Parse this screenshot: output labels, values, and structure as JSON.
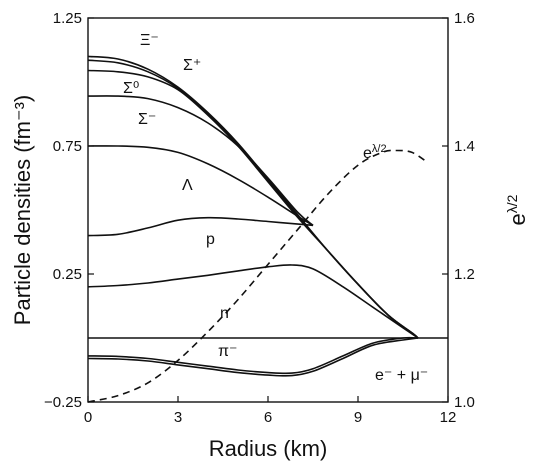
{
  "chart_data": {
    "type": "line",
    "title": "",
    "xlabel": "Radius (km)",
    "ylabel": "Particle densities (fm⁻³)",
    "y2label": "e^{λ/2}",
    "xlim": [
      0,
      12
    ],
    "ylim": [
      -0.25,
      1.25
    ],
    "y2lim": [
      1.0,
      1.6
    ],
    "x_ticks": [
      "0",
      "3",
      "6",
      "9",
      "12"
    ],
    "y_ticks": [
      "−0.25",
      "0.25",
      "0.75",
      "1.25"
    ],
    "y2_ticks": [
      "1.0",
      "1.2",
      "1.4",
      "1.6"
    ],
    "grid": false,
    "series": [
      {
        "name": "Ξ⁻",
        "axis": "left",
        "style": "solid",
        "x": [
          0,
          1,
          2,
          3,
          4,
          5,
          6,
          7,
          8,
          9,
          10,
          10.8,
          11
        ],
        "y": [
          1.1,
          1.09,
          1.05,
          0.98,
          0.88,
          0.76,
          0.62,
          0.48,
          0.34,
          0.21,
          0.09,
          0.02,
          0.0
        ]
      },
      {
        "name": "Σ⁺",
        "axis": "left",
        "style": "solid",
        "x": [
          0,
          1,
          2,
          3,
          4,
          5,
          6,
          7,
          8,
          9,
          10,
          10.8,
          11
        ],
        "y": [
          1.085,
          1.075,
          1.04,
          0.975,
          0.875,
          0.755,
          0.615,
          0.475,
          0.34,
          0.21,
          0.09,
          0.02,
          0.0
        ]
      },
      {
        "name": "Σ⁰",
        "axis": "left",
        "style": "solid",
        "x": [
          0,
          1,
          2,
          3,
          4,
          5,
          6,
          7,
          8,
          9,
          10,
          10.8,
          11
        ],
        "y": [
          1.045,
          1.04,
          1.02,
          0.97,
          0.87,
          0.75,
          0.61,
          0.47,
          0.34,
          0.21,
          0.09,
          0.02,
          0.0
        ]
      },
      {
        "name": "Σ⁻",
        "axis": "left",
        "style": "solid",
        "x": [
          0,
          1,
          2,
          3,
          4,
          5,
          6,
          7,
          7.5
        ],
        "y": [
          0.945,
          0.945,
          0.935,
          0.9,
          0.84,
          0.75,
          0.625,
          0.49,
          0.44
        ]
      },
      {
        "name": "Λ",
        "axis": "left",
        "style": "solid",
        "x": [
          0,
          1,
          2,
          3,
          4,
          5,
          6,
          7,
          7.5
        ],
        "y": [
          0.75,
          0.75,
          0.745,
          0.725,
          0.68,
          0.62,
          0.55,
          0.475,
          0.44
        ]
      },
      {
        "name": "p",
        "axis": "left",
        "style": "solid",
        "x": [
          0,
          1,
          2,
          3,
          4,
          5,
          6,
          7,
          7.5
        ],
        "y": [
          0.4,
          0.405,
          0.43,
          0.46,
          0.47,
          0.465,
          0.455,
          0.445,
          0.44
        ]
      },
      {
        "name": "n",
        "axis": "left",
        "style": "solid",
        "x": [
          0,
          1,
          2,
          3,
          4,
          5,
          6,
          6.8,
          7.5,
          8.5,
          9.5,
          10.5,
          11
        ],
        "y": [
          0.2,
          0.205,
          0.215,
          0.23,
          0.245,
          0.262,
          0.278,
          0.285,
          0.27,
          0.2,
          0.12,
          0.04,
          0.0
        ]
      },
      {
        "name": "π⁻",
        "axis": "left",
        "style": "solid",
        "x": [
          0,
          1,
          2,
          3,
          4,
          5,
          6,
          6.8,
          7.5,
          8.5,
          9.5,
          10.5,
          11
        ],
        "y": [
          -0.07,
          -0.072,
          -0.08,
          -0.095,
          -0.11,
          -0.125,
          -0.135,
          -0.137,
          -0.12,
          -0.07,
          -0.02,
          0.0,
          0.0
        ]
      },
      {
        "name": "e⁻ + μ⁻",
        "axis": "left",
        "style": "solid",
        "x": [
          0,
          1,
          2,
          3,
          4,
          5,
          6,
          6.8,
          7.5,
          8.5,
          9.5,
          10.5,
          11
        ],
        "y": [
          -0.08,
          -0.082,
          -0.09,
          -0.105,
          -0.12,
          -0.135,
          -0.145,
          -0.147,
          -0.13,
          -0.08,
          -0.028,
          -0.008,
          0.0
        ]
      },
      {
        "name": "e^{λ/2}",
        "axis": "right",
        "style": "dashed",
        "x": [
          0,
          1,
          2,
          3,
          4,
          5,
          6,
          7,
          8,
          9,
          9.8,
          10.3,
          10.8,
          11.3
        ],
        "y": [
          1.0,
          1.01,
          1.03,
          1.065,
          1.11,
          1.16,
          1.215,
          1.27,
          1.325,
          1.37,
          1.39,
          1.393,
          1.39,
          1.375
        ]
      }
    ],
    "annotations": [
      "Ξ⁻",
      "Σ⁺",
      "Σ⁰",
      "Σ⁻",
      "Λ",
      "p",
      "n",
      "π⁻",
      "e⁻ + μ⁻",
      "e^{λ/2}"
    ]
  }
}
